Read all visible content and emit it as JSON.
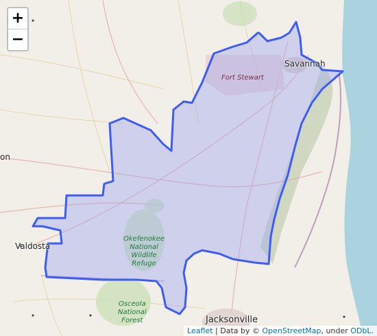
{
  "zoom": {
    "in_label": "+",
    "out_label": "−"
  },
  "places": {
    "savannah": "Savannah",
    "fort_stewart": "Fort Stewart",
    "valdosta": "Valdosta",
    "jacksonville": "Jacksonville",
    "edge_town": "on"
  },
  "parks": {
    "okefenokee": [
      "Okefenokee",
      "National",
      "Wildlife",
      "Refuge"
    ],
    "osceola": [
      "Osceola",
      "National",
      "Forest"
    ]
  },
  "attribution": {
    "leaflet": "Leaflet",
    "sep1": " | Data by © ",
    "osm": "OpenStreetMap",
    "sep2": ", under ",
    "odbl": "ODbL",
    "end": "."
  },
  "colors": {
    "land": "#f2efe9",
    "ocean": "#aad3df",
    "region_fill": "#9aa6f0",
    "region_stroke": "#3d5cf5"
  }
}
